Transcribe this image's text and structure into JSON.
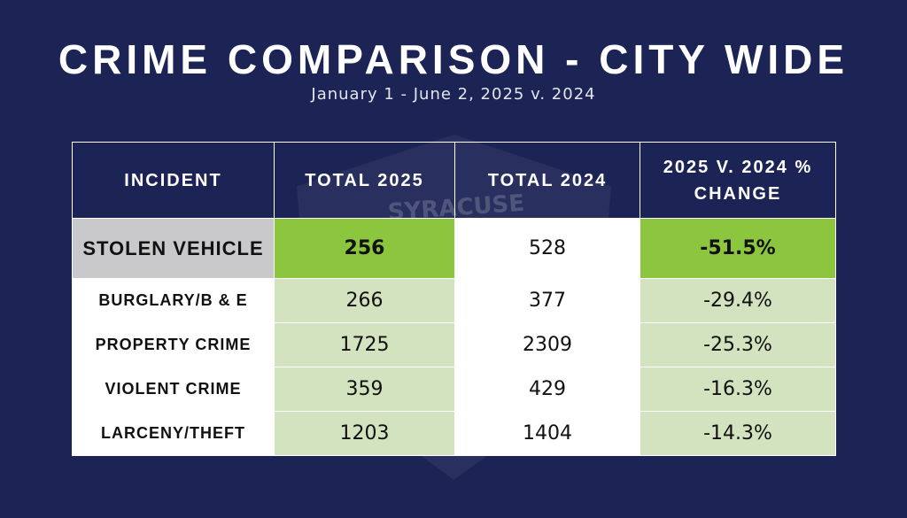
{
  "header": {
    "title": "CRIME COMPARISON - CITY WIDE",
    "subtitle": "January 1 - June 2, 2025 v. 2024"
  },
  "watermark": "SYRACUSE",
  "table": {
    "columns": [
      "INCIDENT",
      "TOTAL 2025",
      "TOTAL 2024",
      "2025 V. 2024 % CHANGE"
    ],
    "rows": [
      [
        "STOLEN VEHICLE",
        256,
        528,
        "-51.5%"
      ],
      [
        "BURGLARY/B & E",
        266,
        377,
        "-29.4%"
      ],
      [
        "PROPERTY CRIME",
        1725,
        2309,
        "-25.3%"
      ],
      [
        "VIOLENT CRIME",
        359,
        429,
        "-16.3%"
      ],
      [
        "LARCENY/THEFT",
        1203,
        1404,
        "-14.3%"
      ]
    ]
  }
}
